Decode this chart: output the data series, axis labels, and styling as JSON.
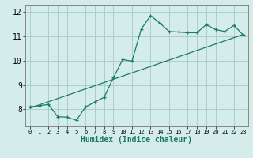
{
  "xlabel": "Humidex (Indice chaleur)",
  "bg_color": "#d4ecea",
  "grid_color": "#aacfcf",
  "line_color": "#1a7a6a",
  "data_x": [
    0,
    1,
    2,
    3,
    4,
    5,
    6,
    7,
    8,
    9,
    10,
    11,
    12,
    13,
    14,
    15,
    16,
    17,
    18,
    19,
    20,
    21,
    22,
    23
  ],
  "data_y": [
    8.1,
    8.15,
    8.2,
    7.7,
    7.68,
    7.55,
    8.1,
    8.3,
    8.5,
    9.3,
    10.05,
    9.98,
    11.3,
    11.85,
    11.55,
    11.2,
    11.18,
    11.15,
    11.15,
    11.48,
    11.28,
    11.2,
    11.45,
    11.05
  ],
  "trend_x": [
    0,
    23
  ],
  "trend_y": [
    8.05,
    11.08
  ],
  "xlim": [
    -0.5,
    23.5
  ],
  "ylim": [
    7.3,
    12.3
  ],
  "yticks": [
    8,
    9,
    10,
    11,
    12
  ],
  "xticks": [
    0,
    1,
    2,
    3,
    4,
    5,
    6,
    7,
    8,
    9,
    10,
    11,
    12,
    13,
    14,
    15,
    16,
    17,
    18,
    19,
    20,
    21,
    22,
    23
  ],
  "xlabel_fontsize": 7,
  "ytick_fontsize": 7,
  "xtick_fontsize": 5
}
